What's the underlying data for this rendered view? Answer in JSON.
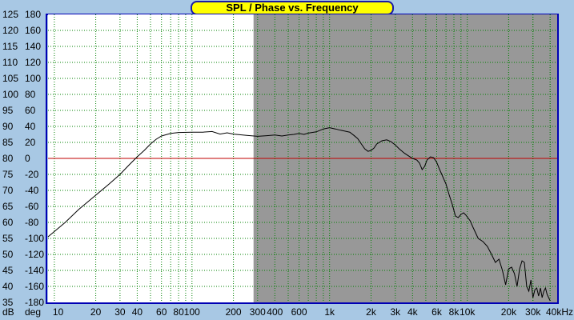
{
  "chart_data": {
    "type": "line",
    "title": "SPL / Phase vs. Frequency",
    "x_scale": "log",
    "xlim": [
      9,
      45000
    ],
    "ylim_db": [
      35,
      125
    ],
    "ylim_deg": [
      -180,
      180
    ],
    "y_unit_labels": [
      "dB",
      "deg"
    ],
    "x_ticks": [
      {
        "value": 10,
        "label": "10"
      },
      {
        "value": 20,
        "label": "20"
      },
      {
        "value": 30,
        "label": "30"
      },
      {
        "value": 40,
        "label": "40"
      },
      {
        "value": 60,
        "label": "60"
      },
      {
        "value": 80,
        "label": "80"
      },
      {
        "value": 100,
        "label": "100"
      },
      {
        "value": 200,
        "label": "200"
      },
      {
        "value": 300,
        "label": "300"
      },
      {
        "value": 400,
        "label": "400"
      },
      {
        "value": 600,
        "label": "600"
      },
      {
        "value": 1000,
        "label": "1k"
      },
      {
        "value": 2000,
        "label": "2k"
      },
      {
        "value": 3000,
        "label": "3k"
      },
      {
        "value": 4000,
        "label": "4k"
      },
      {
        "value": 6000,
        "label": "6k"
      },
      {
        "value": 8000,
        "label": "8k"
      },
      {
        "value": 10000,
        "label": "10k"
      },
      {
        "value": 20000,
        "label": "20k"
      },
      {
        "value": 30000,
        "label": "30k"
      },
      {
        "value": 40000,
        "label": "40kHz"
      }
    ],
    "y_ticks_db": [
      "125",
      "120",
      "115",
      "110",
      "105",
      "100",
      "95",
      "90",
      "85",
      "80",
      "75",
      "70",
      "65",
      "60",
      "55",
      "50",
      "45",
      "40",
      "35"
    ],
    "y_ticks_deg": [
      "180",
      "160",
      "140",
      "120",
      "100",
      "80",
      "60",
      "40",
      "20",
      "0",
      "-20",
      "-40",
      "-60",
      "-80",
      "-100",
      "-120",
      "-140",
      "-160",
      "-180"
    ],
    "reference_line_db": 80,
    "shaded_region_start_hz": 280,
    "grid": true,
    "colors": {
      "plot_bg": "#ffffff",
      "shaded_bg": "#989898",
      "grid": "#008000",
      "reference_line": "#c00000",
      "curve": "#000000",
      "frame": "#0000b4",
      "title_bg": "#ffff00"
    },
    "series": [
      {
        "x": [
          9,
          12,
          15,
          20,
          25,
          30,
          35,
          40,
          45,
          50,
          55,
          60,
          70,
          80,
          100,
          120,
          140,
          160,
          180,
          200,
          250,
          300,
          350,
          400,
          450,
          500,
          550,
          600,
          650,
          700,
          800,
          900,
          1000,
          1100,
          1200,
          1300,
          1400,
          1500,
          1600,
          1700,
          1800,
          1900,
          2000,
          2100,
          2200,
          2400,
          2600,
          2800,
          3000,
          3200,
          3500,
          3800,
          4000,
          4300,
          4500,
          4700,
          4900,
          5100,
          5400,
          5700,
          6000,
          6300,
          6600,
          7000,
          7400,
          7800,
          8200,
          8600,
          9000,
          9400,
          9800,
          10500,
          11000,
          12000,
          13000,
          14000,
          15000,
          16000,
          17000,
          18000,
          19000,
          20000,
          21000,
          22000,
          23000,
          24000,
          25000,
          26000,
          27000,
          28000,
          29000,
          30000,
          31000,
          32000,
          33000,
          34000,
          35000,
          36000,
          37000,
          38000,
          40000
        ],
        "y": [
          55.5,
          60,
          64,
          68.5,
          72,
          75,
          78,
          80.5,
          82.5,
          84.5,
          86,
          87,
          87.8,
          88.1,
          88.2,
          88.2,
          88.4,
          87.6,
          88,
          87.6,
          87.2,
          86.9,
          87.1,
          87.3,
          87.0,
          87.3,
          87.5,
          87.8,
          87.5,
          87.9,
          88.3,
          89.2,
          89.6,
          89.2,
          88.8,
          88.5,
          88.2,
          87.2,
          86.2,
          84.5,
          83,
          82.2,
          82.5,
          83.2,
          84.5,
          85.5,
          85.8,
          85.2,
          84.2,
          83,
          81.6,
          80.6,
          80,
          79.5,
          78.5,
          76.5,
          77.5,
          79.5,
          80.5,
          80.2,
          78.8,
          76.5,
          74.5,
          72,
          68.5,
          65.5,
          62,
          61.5,
          62.5,
          63,
          62.2,
          60.5,
          58.5,
          55,
          54,
          52.5,
          50,
          47.5,
          48.5,
          45,
          40.5,
          45.5,
          46,
          44,
          40,
          45.5,
          48,
          47.5,
          40,
          38.5,
          42,
          36.5,
          39,
          39.5,
          37,
          39.5,
          36.5,
          38.5,
          39.5,
          37.5,
          35.5
        ]
      }
    ]
  }
}
